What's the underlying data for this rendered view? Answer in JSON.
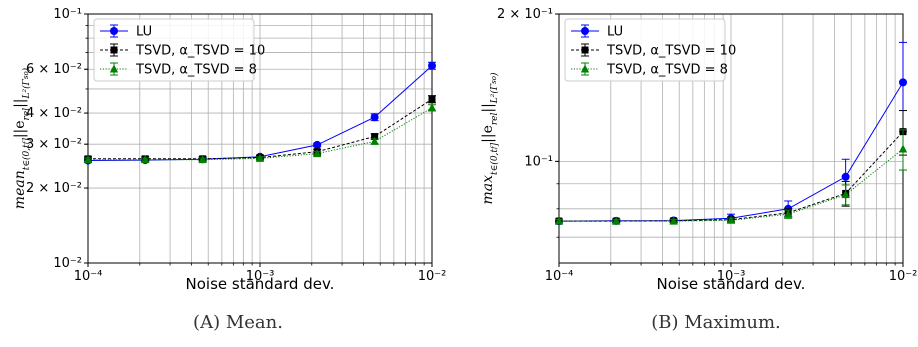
{
  "chart_data": [
    {
      "type": "line",
      "panel": "(A)",
      "caption": "(A) Mean.",
      "xlabel": "Noise standard dev.",
      "ylabel": "mean_{t∈(0,t_f]}||e_{rel}||_{L²(Γ_{s_o})}",
      "xscale": "log",
      "yscale": "log",
      "xlim": [
        0.0001,
        0.01
      ],
      "ylim": [
        0.01,
        0.1
      ],
      "grid": true,
      "legend_position": "top-left",
      "xticks": [
        {
          "value": 0.0001,
          "label": "10⁻⁴"
        },
        {
          "value": 0.001,
          "label": "10⁻³"
        },
        {
          "value": 0.01,
          "label": "10⁻²"
        }
      ],
      "yticks": [
        {
          "value": 0.01,
          "label": "10⁻²"
        },
        {
          "value": 0.02,
          "label": "2 × 10⁻²"
        },
        {
          "value": 0.03,
          "label": "3 × 10⁻²"
        },
        {
          "value": 0.04,
          "label": "4 × 10⁻²"
        },
        {
          "value": 0.06,
          "label": "6 × 10⁻²"
        },
        {
          "value": 0.1,
          "label": "10⁻¹"
        }
      ],
      "x": [
        0.0001,
        0.000215,
        0.000464,
        0.001,
        0.00215,
        0.00464,
        0.01
      ],
      "series": [
        {
          "name": "LU",
          "color": "#0000ff",
          "marker": "circle",
          "linestyle": "solid",
          "values": [
            0.0258,
            0.0259,
            0.0261,
            0.0267,
            0.0298,
            0.0385,
            0.062
          ],
          "errors": [
            0.0004,
            0.0004,
            0.0004,
            0.0004,
            0.0005,
            0.0012,
            0.002
          ]
        },
        {
          "name": "TSVD, α_TSVD = 10",
          "color": "#000000",
          "marker": "square",
          "linestyle": "dashed",
          "values": [
            0.0262,
            0.0262,
            0.0262,
            0.0265,
            0.028,
            0.0322,
            0.0455
          ],
          "errors": [
            0.0005,
            0.0005,
            0.0005,
            0.0005,
            0.0006,
            0.0008,
            0.0015
          ]
        },
        {
          "name": "TSVD, α_TSVD = 8",
          "color": "#008000",
          "marker": "triangle",
          "linestyle": "dotted",
          "values": [
            0.026,
            0.026,
            0.026,
            0.0263,
            0.0275,
            0.0308,
            0.042
          ],
          "errors": [
            0.0004,
            0.0004,
            0.0004,
            0.0004,
            0.0005,
            0.0007,
            0.0012
          ]
        }
      ]
    },
    {
      "type": "line",
      "panel": "(B)",
      "caption": "(B) Maximum.",
      "xlabel": "Noise standard dev.",
      "ylabel": "max_{t∈(0,t_f]}||e_{rel}||_{L²(Γ_{s_o})}",
      "xscale": "log",
      "yscale": "log",
      "xlim": [
        0.0001,
        0.01
      ],
      "ylim": [
        0.062,
        0.2
      ],
      "grid": true,
      "legend_position": "top-left",
      "xticks": [
        {
          "value": 0.0001,
          "label": "10⁻⁴"
        },
        {
          "value": 0.001,
          "label": "10⁻³"
        },
        {
          "value": 0.01,
          "label": "10⁻²"
        }
      ],
      "yticks": [
        {
          "value": 0.1,
          "label": "10⁻¹"
        },
        {
          "value": 0.2,
          "label": "2 × 10⁻¹"
        }
      ],
      "x": [
        0.0001,
        0.000215,
        0.000464,
        0.001,
        0.00215,
        0.00464,
        0.01
      ],
      "series": [
        {
          "name": "LU",
          "color": "#0000ff",
          "marker": "circle",
          "linestyle": "solid",
          "values": [
            0.0755,
            0.0756,
            0.0757,
            0.0765,
            0.08,
            0.093,
            0.145
          ],
          "errors": [
            0.0006,
            0.0006,
            0.0006,
            0.0015,
            0.003,
            0.008,
            0.03
          ]
        },
        {
          "name": "TSVD, α_TSVD = 10",
          "color": "#000000",
          "marker": "square",
          "linestyle": "dashed",
          "values": [
            0.0755,
            0.0755,
            0.0756,
            0.076,
            0.0785,
            0.086,
            0.115
          ],
          "errors": [
            0.0006,
            0.0006,
            0.0006,
            0.0008,
            0.0015,
            0.005,
            0.012
          ]
        },
        {
          "name": "TSVD, α_TSVD = 8",
          "color": "#008000",
          "marker": "triangle",
          "linestyle": "dotted",
          "values": [
            0.0755,
            0.0755,
            0.0755,
            0.0758,
            0.078,
            0.0855,
            0.106
          ],
          "errors": [
            0.0006,
            0.0006,
            0.0006,
            0.0008,
            0.0015,
            0.004,
            0.01
          ]
        }
      ]
    }
  ]
}
